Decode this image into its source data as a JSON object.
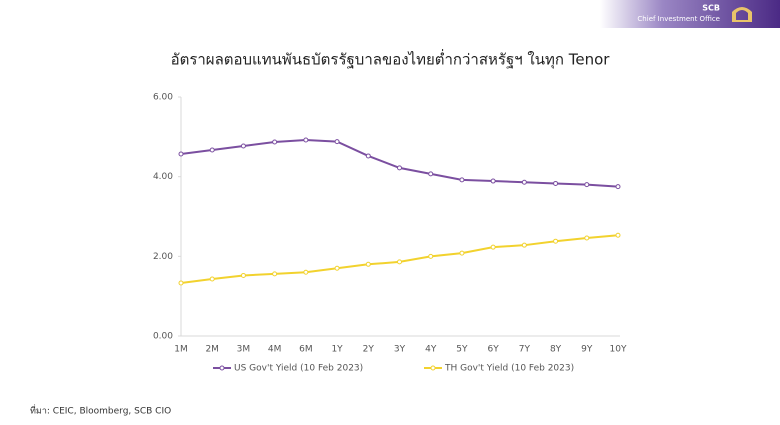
{
  "brand": {
    "name": "SCB",
    "unit": "Chief Investment Office"
  },
  "chart_data": {
    "type": "line",
    "title": "อัตราผลตอบแทนพันธบัตรรัฐบาลของไทยต่ำกว่าสหรัฐฯ  ในทุก Tenor",
    "categories": [
      "1M",
      "2M",
      "3M",
      "4M",
      "6M",
      "1Y",
      "2Y",
      "3Y",
      "4Y",
      "5Y",
      "6Y",
      "7Y",
      "8Y",
      "9Y",
      "10Y"
    ],
    "series": [
      {
        "name": "US Gov't Yield (10 Feb 2023)",
        "color": "#7b4fa0",
        "values": [
          4.57,
          4.67,
          4.77,
          4.87,
          4.92,
          4.88,
          4.52,
          4.22,
          4.07,
          3.92,
          3.89,
          3.86,
          3.83,
          3.8,
          3.75
        ]
      },
      {
        "name": "TH Gov't Yield (10 Feb 2023)",
        "color": "#f2d22e",
        "values": [
          1.33,
          1.43,
          1.52,
          1.56,
          1.6,
          1.7,
          1.8,
          1.86,
          2.0,
          2.08,
          2.23,
          2.28,
          2.38,
          2.46,
          2.53
        ]
      }
    ],
    "ylim": [
      0,
      6
    ],
    "yticks": [
      {
        "value": 0,
        "label": "0.00"
      },
      {
        "value": 2,
        "label": "2.00"
      },
      {
        "value": 4,
        "label": "4.00"
      },
      {
        "value": 6,
        "label": "6.00"
      }
    ],
    "legend": "bottom"
  },
  "source": "ที่มา: CEIC, Bloomberg, SCB CIO"
}
